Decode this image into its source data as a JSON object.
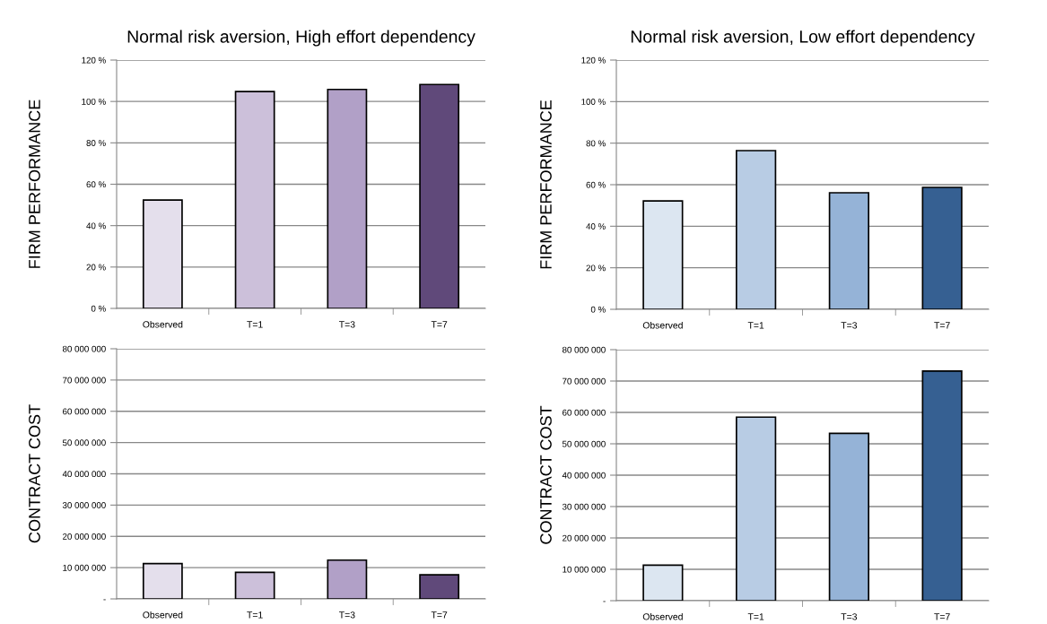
{
  "chart_data": [
    {
      "type": "bar",
      "title": "Normal risk aversion, High effort dependency",
      "ylabel": "FIRM PERFORMANCE",
      "categories": [
        "Observed",
        "T=1",
        "T=3",
        "T=7"
      ],
      "values": [
        52.4,
        104.8,
        105.8,
        108.2
      ],
      "colors": [
        "#e4dfec",
        "#ccc0da",
        "#b1a0c7",
        "#60497a"
      ],
      "ylim": [
        0,
        120
      ],
      "yticks": [
        {
          "value": 0,
          "label": "0 %"
        },
        {
          "value": 20,
          "label": "20 %"
        },
        {
          "value": 40,
          "label": "40 %"
        },
        {
          "value": 60,
          "label": "60 %"
        },
        {
          "value": 80,
          "label": "80 %"
        },
        {
          "value": 100,
          "label": "100 %"
        },
        {
          "value": 120,
          "label": "120 %"
        }
      ],
      "grid": "y"
    },
    {
      "type": "bar",
      "title": "Normal risk aversion, Low effort dependency",
      "ylabel": "FIRM PERFORMANCE",
      "categories": [
        "Observed",
        "T=1",
        "T=3",
        "T=7"
      ],
      "values": [
        52.2,
        76.4,
        56.1,
        58.7
      ],
      "colors": [
        "#dce6f1",
        "#b8cce4",
        "#95b3d7",
        "#366092"
      ],
      "ylim": [
        0,
        120
      ],
      "yticks": [
        {
          "value": 0,
          "label": "0 %"
        },
        {
          "value": 20,
          "label": "20 %"
        },
        {
          "value": 40,
          "label": "40 %"
        },
        {
          "value": 60,
          "label": "60 %"
        },
        {
          "value": 80,
          "label": "80 %"
        },
        {
          "value": 100,
          "label": "100 %"
        },
        {
          "value": 120,
          "label": "120 %"
        }
      ],
      "grid": "y"
    },
    {
      "type": "bar",
      "ylabel": "CONTRACT COST",
      "categories": [
        "Observed",
        "T=1",
        "T=3",
        "T=7"
      ],
      "values": [
        11300000,
        8500000,
        12400000,
        7700000
      ],
      "colors": [
        "#e4dfec",
        "#ccc0da",
        "#b1a0c7",
        "#60497a"
      ],
      "ylim": [
        0,
        80000000
      ],
      "yticks": [
        {
          "value": 0,
          "label": "-"
        },
        {
          "value": 10000000,
          "label": "10 000 000"
        },
        {
          "value": 20000000,
          "label": "20 000 000"
        },
        {
          "value": 30000000,
          "label": "30 000 000"
        },
        {
          "value": 40000000,
          "label": "40 000 000"
        },
        {
          "value": 50000000,
          "label": "50 000 000"
        },
        {
          "value": 60000000,
          "label": "60 000 000"
        },
        {
          "value": 70000000,
          "label": "70 000 000"
        },
        {
          "value": 80000000,
          "label": "80 000 000"
        }
      ],
      "grid": "y"
    },
    {
      "type": "bar",
      "ylabel": "CONTRACT COST",
      "categories": [
        "Observed",
        "T=1",
        "T=3",
        "T=7"
      ],
      "values": [
        11300000,
        58500000,
        53300000,
        73200000
      ],
      "colors": [
        "#dce6f1",
        "#b8cce4",
        "#95b3d7",
        "#366092"
      ],
      "ylim": [
        0,
        80000000
      ],
      "yticks": [
        {
          "value": 0,
          "label": "-"
        },
        {
          "value": 10000000,
          "label": "10 000 000"
        },
        {
          "value": 20000000,
          "label": "20 000 000"
        },
        {
          "value": 30000000,
          "label": "30 000 000"
        },
        {
          "value": 40000000,
          "label": "40 000 000"
        },
        {
          "value": 50000000,
          "label": "50 000 000"
        },
        {
          "value": 60000000,
          "label": "60 000 000"
        },
        {
          "value": 70000000,
          "label": "70 000 000"
        },
        {
          "value": 80000000,
          "label": "80 000 000"
        }
      ],
      "grid": "y"
    }
  ]
}
